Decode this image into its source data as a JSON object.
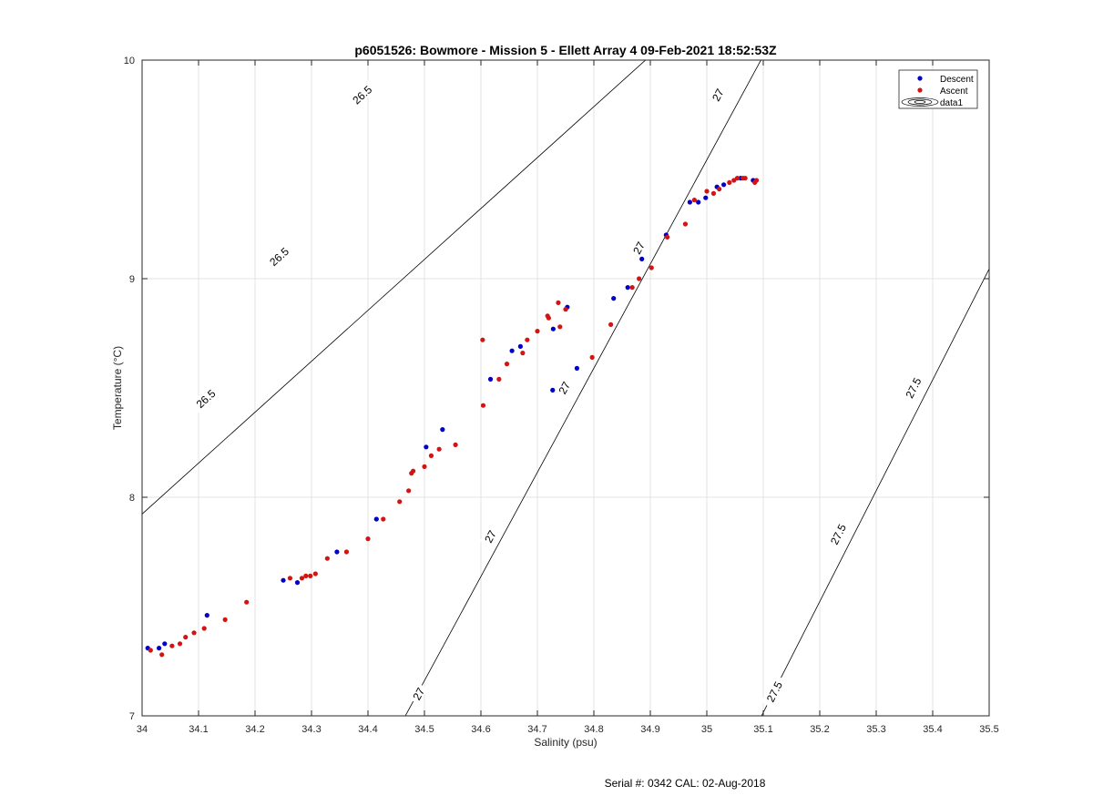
{
  "chart_data": {
    "type": "scatter",
    "title": "p6051526: Bowmore - Mission 5 - Ellett Array 4 09-Feb-2021 18:52:53Z",
    "xlabel": "Salinity (psu)",
    "ylabel": "Temperature (°C)",
    "xlim": [
      34,
      35.5
    ],
    "ylim": [
      7,
      10
    ],
    "xticks": [
      "34",
      "34.1",
      "34.2",
      "34.3",
      "34.4",
      "34.5",
      "34.6",
      "34.7",
      "34.8",
      "34.9",
      "35",
      "35.1",
      "35.2",
      "35.3",
      "35.4",
      "35.5"
    ],
    "yticks": [
      "7",
      "8",
      "9",
      "10"
    ],
    "grid": true,
    "legend_position": "top-right",
    "legend": [
      "Descent",
      "Ascent",
      "data1"
    ],
    "colors": {
      "descent": "#0000c8",
      "ascent": "#d21414",
      "contour": "#000000",
      "grid": "#e3e3e3"
    },
    "series": [
      {
        "name": "Descent",
        "points": [
          [
            34.01,
            7.31
          ],
          [
            34.03,
            7.31
          ],
          [
            34.04,
            7.33
          ],
          [
            34.115,
            7.46
          ],
          [
            34.25,
            7.62
          ],
          [
            34.275,
            7.61
          ],
          [
            34.345,
            7.75
          ],
          [
            34.415,
            7.9
          ],
          [
            34.503,
            8.23
          ],
          [
            34.532,
            8.31
          ],
          [
            34.617,
            8.54
          ],
          [
            34.655,
            8.67
          ],
          [
            34.67,
            8.69
          ],
          [
            34.727,
            8.49
          ],
          [
            34.728,
            8.77
          ],
          [
            34.753,
            8.87
          ],
          [
            34.77,
            8.59
          ],
          [
            34.835,
            8.91
          ],
          [
            34.86,
            8.96
          ],
          [
            34.885,
            9.09
          ],
          [
            34.928,
            9.2
          ],
          [
            34.97,
            9.35
          ],
          [
            34.985,
            9.35
          ],
          [
            34.998,
            9.37
          ],
          [
            35.018,
            9.42
          ],
          [
            35.03,
            9.43
          ],
          [
            35.06,
            9.46
          ],
          [
            35.082,
            9.45
          ]
        ]
      },
      {
        "name": "Ascent",
        "points": [
          [
            34.015,
            7.3
          ],
          [
            34.035,
            7.28
          ],
          [
            34.053,
            7.32
          ],
          [
            34.067,
            7.33
          ],
          [
            34.077,
            7.36
          ],
          [
            34.092,
            7.38
          ],
          [
            34.11,
            7.4
          ],
          [
            34.147,
            7.44
          ],
          [
            34.185,
            7.52
          ],
          [
            34.262,
            7.63
          ],
          [
            34.283,
            7.63
          ],
          [
            34.29,
            7.64
          ],
          [
            34.298,
            7.64
          ],
          [
            34.307,
            7.65
          ],
          [
            34.328,
            7.72
          ],
          [
            34.362,
            7.75
          ],
          [
            34.4,
            7.81
          ],
          [
            34.427,
            7.9
          ],
          [
            34.456,
            7.98
          ],
          [
            34.472,
            8.03
          ],
          [
            34.477,
            8.11
          ],
          [
            34.48,
            8.12
          ],
          [
            34.5,
            8.14
          ],
          [
            34.512,
            8.19
          ],
          [
            34.526,
            8.22
          ],
          [
            34.555,
            8.24
          ],
          [
            34.604,
            8.42
          ],
          [
            34.603,
            8.72
          ],
          [
            34.632,
            8.54
          ],
          [
            34.646,
            8.61
          ],
          [
            34.674,
            8.66
          ],
          [
            34.682,
            8.72
          ],
          [
            34.7,
            8.76
          ],
          [
            34.718,
            8.83
          ],
          [
            34.72,
            8.82
          ],
          [
            34.737,
            8.89
          ],
          [
            34.74,
            8.78
          ],
          [
            34.75,
            8.86
          ],
          [
            34.797,
            8.64
          ],
          [
            34.83,
            8.79
          ],
          [
            34.868,
            8.96
          ],
          [
            34.88,
            9.0
          ],
          [
            34.902,
            9.05
          ],
          [
            34.93,
            9.19
          ],
          [
            34.962,
            9.25
          ],
          [
            34.978,
            9.36
          ],
          [
            35.0,
            9.4
          ],
          [
            35.012,
            9.39
          ],
          [
            35.022,
            9.41
          ],
          [
            35.04,
            9.44
          ],
          [
            35.048,
            9.45
          ],
          [
            35.054,
            9.46
          ],
          [
            35.064,
            9.46
          ],
          [
            35.068,
            9.46
          ],
          [
            35.085,
            9.44
          ],
          [
            35.088,
            9.45
          ]
        ]
      }
    ],
    "contours": [
      {
        "level": "26.5",
        "labels": [
          "26.5",
          "26.5",
          "26.5"
        ]
      },
      {
        "level": "27",
        "labels": [
          "27",
          "27",
          "27",
          "27",
          "27"
        ]
      },
      {
        "level": "27.5",
        "labels": [
          "27.5",
          "27.5",
          "27.5"
        ]
      }
    ]
  },
  "footer": "Serial #: 0342  CAL: 02-Aug-2018"
}
